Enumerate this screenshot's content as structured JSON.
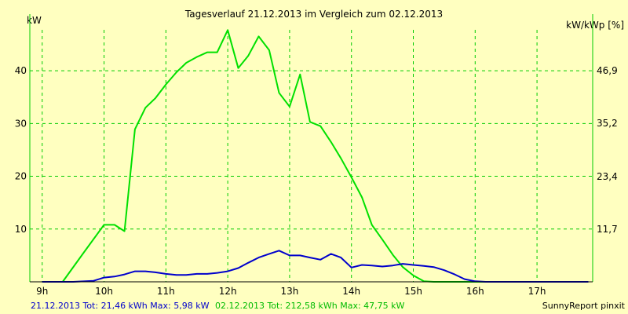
{
  "chart_data": {
    "type": "line",
    "title": "Tagesverlauf 21.12.2013 im Vergleich zum 02.12.2013",
    "ylabel_left": "kW",
    "ylabel_right": "kW/kWp [%]",
    "x_ticks": [
      "9h",
      "10h",
      "11h",
      "12h",
      "13h",
      "14h",
      "15h",
      "16h",
      "17h"
    ],
    "y_ticks_left": [
      "10",
      "20",
      "30",
      "40"
    ],
    "y_ticks_right": [
      "11,7",
      "23,4",
      "35,2",
      "46,9"
    ],
    "xlim": [
      8.8,
      17.9
    ],
    "ylim": [
      0,
      47.75
    ],
    "grid": true,
    "colors": {
      "background": "#FFFFC0",
      "grid": "#00CC00",
      "series_21_12": "#0000CC",
      "series_02_12": "#00E000"
    },
    "series": [
      {
        "name": "02.12.2013",
        "color": "#00E000",
        "x": [
          9.0,
          9.33,
          9.67,
          10.0,
          10.17,
          10.33,
          10.5,
          10.67,
          10.83,
          11.0,
          11.17,
          11.33,
          11.5,
          11.67,
          11.83,
          12.0,
          12.17,
          12.33,
          12.5,
          12.67,
          12.83,
          13.0,
          13.17,
          13.33,
          13.5,
          13.67,
          13.83,
          14.0,
          14.17,
          14.33,
          14.5,
          14.67,
          14.83,
          15.0,
          15.17,
          15.33,
          15.5,
          15.67,
          15.83,
          16.0,
          16.17,
          16.33,
          16.5,
          16.67,
          16.83,
          17.0,
          17.17,
          17.33,
          17.5,
          17.67,
          17.83
        ],
        "y": [
          0,
          0,
          5.5,
          10.8,
          10.8,
          9.6,
          28.9,
          33.0,
          34.8,
          37.4,
          39.7,
          41.5,
          42.6,
          43.5,
          43.5,
          47.7,
          40.5,
          42.8,
          46.5,
          43.9,
          35.8,
          33.2,
          39.3,
          30.3,
          29.5,
          26.5,
          23.4,
          19.8,
          16.0,
          10.8,
          8.0,
          5.1,
          2.8,
          1.2,
          0.1,
          0,
          0,
          0,
          0,
          0,
          0,
          0,
          0,
          0,
          0,
          0,
          0,
          0,
          0,
          0,
          0
        ]
      },
      {
        "name": "21.12.2013",
        "color": "#0000CC",
        "x": [
          9.0,
          9.5,
          9.83,
          10.0,
          10.17,
          10.33,
          10.5,
          10.67,
          10.83,
          11.0,
          11.17,
          11.33,
          11.5,
          11.67,
          11.83,
          12.0,
          12.17,
          12.33,
          12.5,
          12.67,
          12.83,
          13.0,
          13.17,
          13.33,
          13.5,
          13.67,
          13.83,
          14.0,
          14.17,
          14.33,
          14.5,
          14.67,
          14.83,
          15.0,
          15.17,
          15.33,
          15.5,
          15.67,
          15.83,
          16.0,
          16.17,
          16.33,
          16.5,
          16.67,
          16.83,
          17.0,
          17.17,
          17.33,
          17.5,
          17.67,
          17.83
        ],
        "y": [
          0,
          0,
          0.2,
          0.8,
          1.0,
          1.4,
          2.0,
          2.0,
          1.8,
          1.5,
          1.3,
          1.3,
          1.5,
          1.5,
          1.7,
          2.0,
          2.6,
          3.6,
          4.6,
          5.3,
          5.9,
          5.0,
          5.0,
          4.6,
          4.2,
          5.3,
          4.6,
          2.7,
          3.2,
          3.1,
          2.9,
          3.1,
          3.4,
          3.2,
          3.0,
          2.8,
          2.2,
          1.4,
          0.5,
          0.1,
          0,
          0,
          0,
          0,
          0,
          0,
          0,
          0,
          0,
          0,
          0
        ]
      }
    ]
  },
  "footer": {
    "left_blue": "21.12.2013 Tot: 21,46 kWh Max: 5,98 kW",
    "left_green": "02.12.2013 Tot: 212,58 kWh Max: 47,75 kW",
    "right": "SunnyReport pinxit"
  }
}
